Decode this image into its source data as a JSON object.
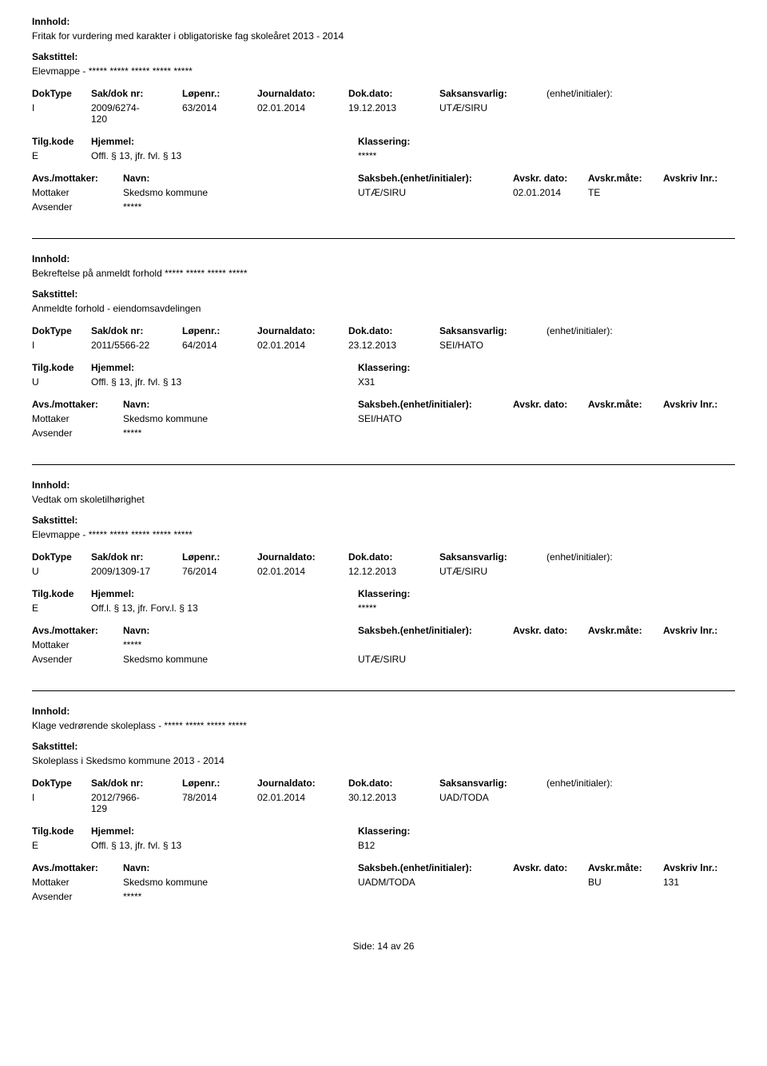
{
  "labels": {
    "innhold": "Innhold:",
    "sakstittel": "Sakstittel:",
    "doktype": "DokType",
    "sakdok": "Sak/dok nr:",
    "lopenr": "Løpenr.:",
    "journaldato": "Journaldato:",
    "dokdato": "Dok.dato:",
    "saksansvarlig": "Saksansvarlig:",
    "enhet": "(enhet/initialer):",
    "tilgkode": "Tilg.kode",
    "hjemmel": "Hjemmel:",
    "klassering": "Klassering:",
    "avsmottaker": "Avs./mottaker:",
    "navn": "Navn:",
    "saksbeh": "Saksbeh.(enhet/initialer):",
    "avskrdato": "Avskr. dato:",
    "avskrmate": "Avskr.måte:",
    "avskrivlnr": "Avskriv lnr.:",
    "mottaker": "Mottaker",
    "avsender": "Avsender"
  },
  "records": [
    {
      "innhold": "Fritak for vurdering med karakter i obligatoriske fag skoleåret 2013 - 2014",
      "sakstittel": "Elevmappe - ***** ***** ***** ***** *****",
      "doktype": "I",
      "sakdok": "2009/6274-",
      "sakdok_sub": "120",
      "lopenr": "63/2014",
      "journaldato": "02.01.2014",
      "dokdato": "19.12.2013",
      "saksansvarlig": "UTÆ/SIRU",
      "enhet": "",
      "tilgkode": "E",
      "hjemmel": "Offl. § 13, jfr. fvl. § 13",
      "klassering": "*****",
      "rows": [
        {
          "role": "Mottaker",
          "navn": "Skedsmo kommune",
          "saksbeh": "UTÆ/SIRU",
          "avskrdato": "02.01.2014",
          "avskrmate": "TE",
          "avskrivlnr": ""
        },
        {
          "role": "Avsender",
          "navn": "*****",
          "saksbeh": "",
          "avskrdato": "",
          "avskrmate": "",
          "avskrivlnr": ""
        }
      ]
    },
    {
      "innhold": "Bekreftelse på anmeldt forhold ***** ***** ***** *****",
      "sakstittel": "Anmeldte forhold - eiendomsavdelingen",
      "doktype": "I",
      "sakdok": "2011/5566-22",
      "sakdok_sub": "",
      "lopenr": "64/2014",
      "journaldato": "02.01.2014",
      "dokdato": "23.12.2013",
      "saksansvarlig": "SEI/HATO",
      "enhet": "",
      "tilgkode": "U",
      "hjemmel": "Offl. § 13, jfr. fvl. § 13",
      "klassering": "X31",
      "rows": [
        {
          "role": "Mottaker",
          "navn": "Skedsmo kommune",
          "saksbeh": "SEI/HATO",
          "avskrdato": "",
          "avskrmate": "",
          "avskrivlnr": ""
        },
        {
          "role": "Avsender",
          "navn": "*****",
          "saksbeh": "",
          "avskrdato": "",
          "avskrmate": "",
          "avskrivlnr": ""
        }
      ]
    },
    {
      "innhold": "Vedtak om skoletilhørighet",
      "sakstittel": "Elevmappe - ***** ***** ***** ***** *****",
      "doktype": "U",
      "sakdok": "2009/1309-17",
      "sakdok_sub": "",
      "lopenr": "76/2014",
      "journaldato": "02.01.2014",
      "dokdato": "12.12.2013",
      "saksansvarlig": "UTÆ/SIRU",
      "enhet": "",
      "tilgkode": "E",
      "hjemmel": "Off.l. § 13, jfr. Forv.l. § 13",
      "klassering": "*****",
      "rows": [
        {
          "role": "Mottaker",
          "navn": "*****",
          "saksbeh": "",
          "avskrdato": "",
          "avskrmate": "",
          "avskrivlnr": ""
        },
        {
          "role": "Avsender",
          "navn": "Skedsmo kommune",
          "saksbeh": "UTÆ/SIRU",
          "avskrdato": "",
          "avskrmate": "",
          "avskrivlnr": ""
        }
      ]
    },
    {
      "innhold": "Klage vedrørende skoleplass - ***** ***** ***** *****",
      "sakstittel": "Skoleplass i Skedsmo kommune 2013 - 2014",
      "doktype": "I",
      "sakdok": "2012/7966-",
      "sakdok_sub": "129",
      "lopenr": "78/2014",
      "journaldato": "02.01.2014",
      "dokdato": "30.12.2013",
      "saksansvarlig": "UAD/TODA",
      "enhet": "",
      "tilgkode": "E",
      "hjemmel": "Offl. § 13, jfr. fvl. § 13",
      "klassering": "B12",
      "rows": [
        {
          "role": "Mottaker",
          "navn": "Skedsmo kommune",
          "saksbeh": "UADM/TODA",
          "avskrdato": "",
          "avskrmate": "BU",
          "avskrivlnr": "131"
        },
        {
          "role": "Avsender",
          "navn": "*****",
          "saksbeh": "",
          "avskrdato": "",
          "avskrmate": "",
          "avskrivlnr": ""
        }
      ]
    }
  ],
  "footer": {
    "side_label": "Side:",
    "current": "14",
    "av": "av",
    "total": "26"
  }
}
